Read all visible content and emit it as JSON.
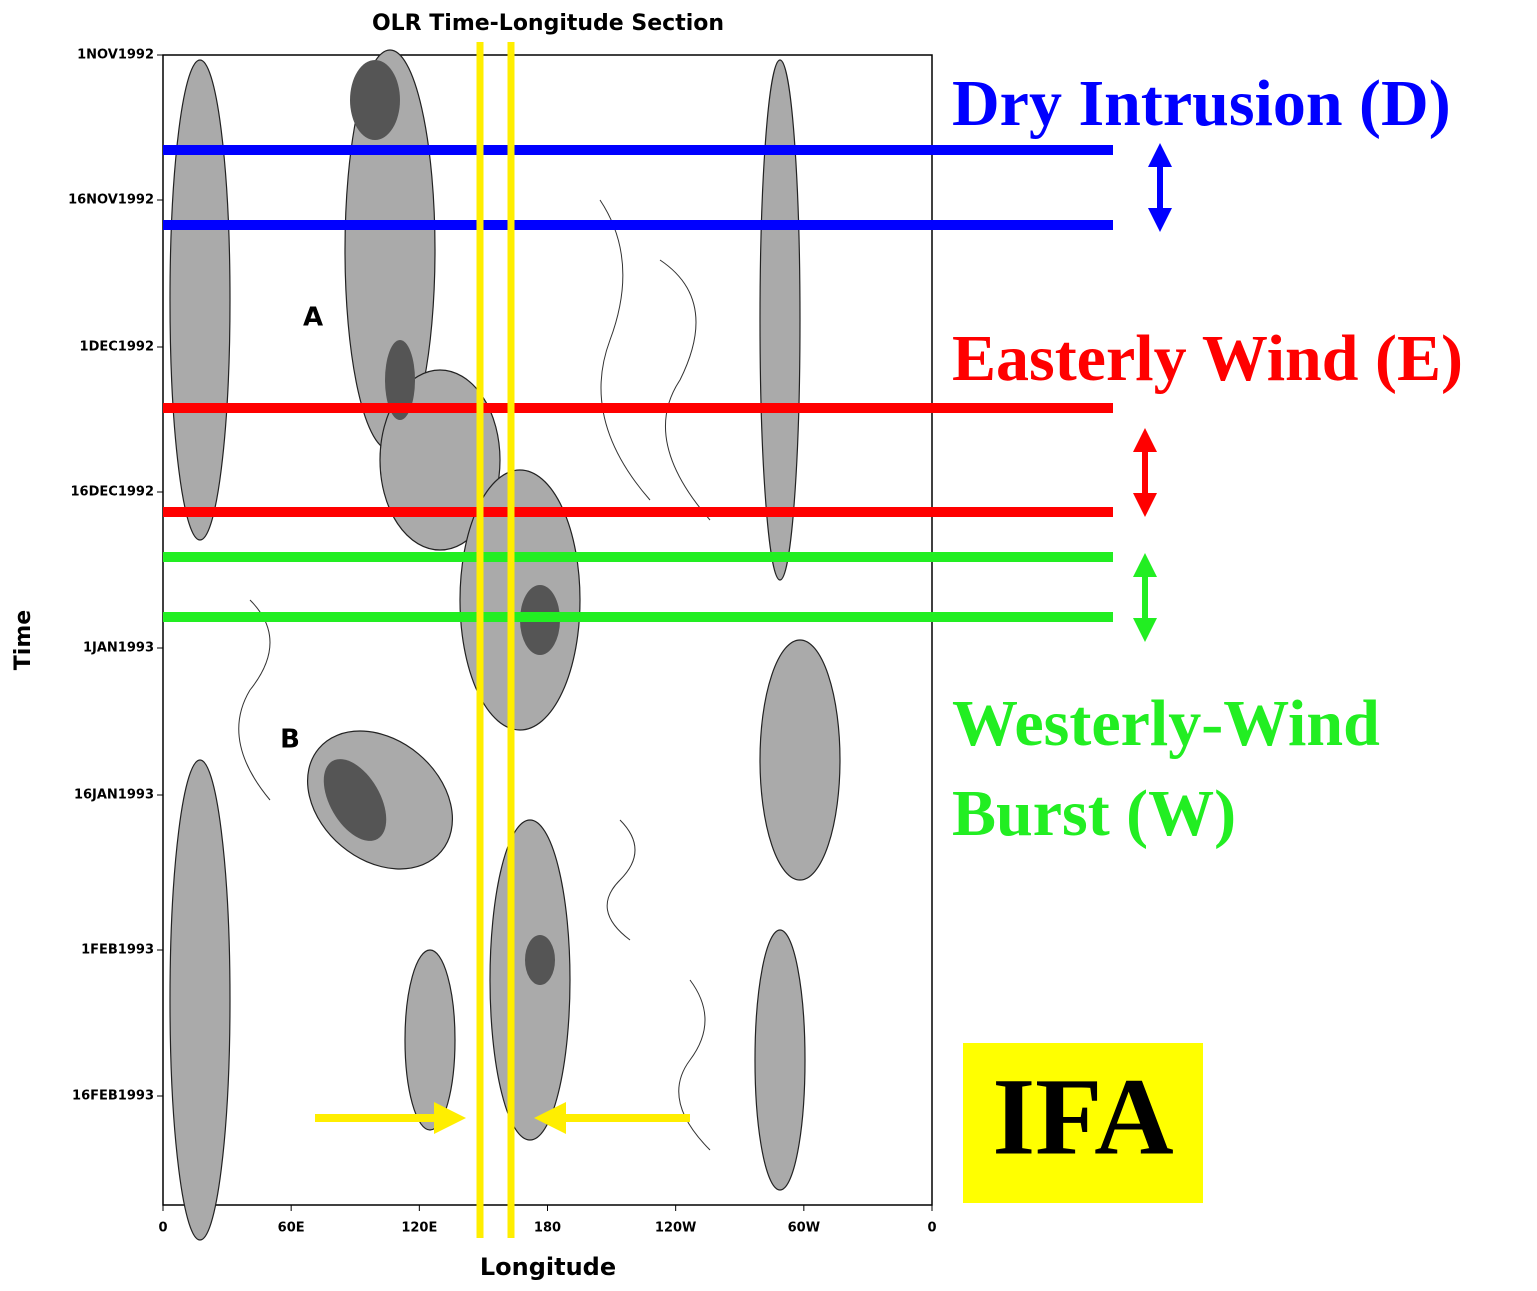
{
  "figure": {
    "title": "OLR Time-Longitude Section",
    "y_label": "Time",
    "x_label": "Longitude",
    "y_ticks": [
      "1NOV1992",
      "16NOV1992",
      "1DEC1992",
      "16DEC1992",
      "1JAN1993",
      "16JAN1993",
      "1FEB1993",
      "16FEB1993"
    ],
    "x_ticks": [
      "0",
      "60E",
      "120E",
      "180",
      "120W",
      "60W",
      "0"
    ],
    "markers": [
      "A",
      "B"
    ]
  },
  "annotations": {
    "dry": "Dry Intrusion (D)",
    "easterly": "Easterly Wind (E)",
    "westerly": [
      "Westerly-Wind",
      "Burst (W)"
    ],
    "ifa": "IFA"
  }
}
